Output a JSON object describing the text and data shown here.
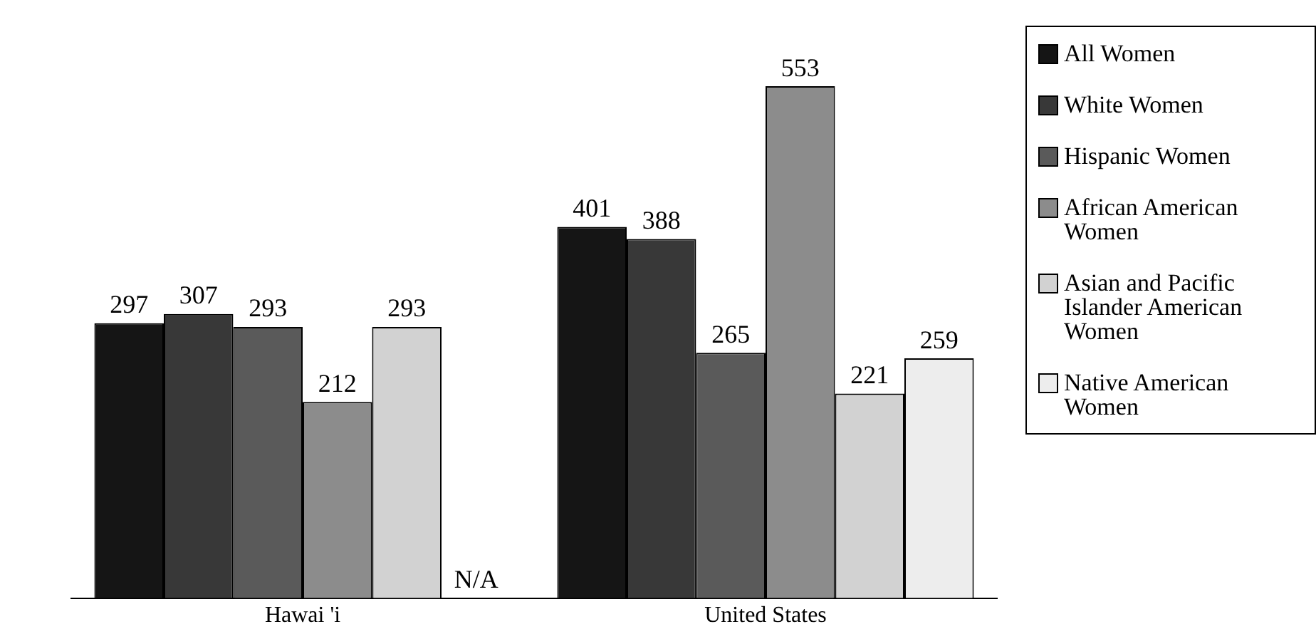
{
  "chart_data": {
    "type": "bar",
    "categories": [
      "Hawai 'i",
      "United States"
    ],
    "series": [
      {
        "name": "All Women",
        "color": "#151515",
        "values": [
          297,
          401
        ],
        "value_labels": [
          "297",
          "401"
        ]
      },
      {
        "name": "White Women",
        "color": "#383838",
        "values": [
          307,
          388
        ],
        "value_labels": [
          "307",
          "388"
        ]
      },
      {
        "name": "Hispanic Women",
        "color": "#5a5a5a",
        "values": [
          293,
          265
        ],
        "value_labels": [
          "293",
          "265"
        ]
      },
      {
        "name": "African American Women",
        "color": "#8c8c8c",
        "values": [
          212,
          553
        ],
        "value_labels": [
          "212",
          "553"
        ]
      },
      {
        "name": "Asian and Pacific Islander American Women",
        "color": "#d2d2d2",
        "values": [
          293,
          221
        ],
        "value_labels": [
          "293",
          "221"
        ]
      },
      {
        "name": "Native American Women",
        "color": "#ededed",
        "values": [
          null,
          259
        ],
        "value_labels": [
          "N/A",
          "259"
        ]
      }
    ],
    "legend": "right",
    "grid": false
  }
}
